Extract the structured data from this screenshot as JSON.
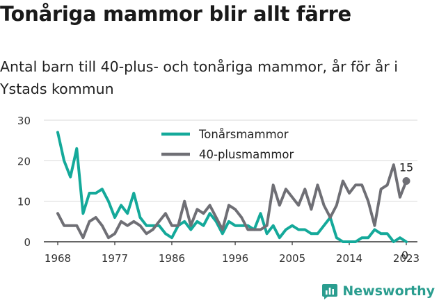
{
  "title": "Tonåriga mammor blir allt färre",
  "subtitle": "Antal barn till 40-plus- och tonåriga mammor, år för år i Ystads kommun",
  "brand": {
    "name": "Newsworthy"
  },
  "colors": {
    "teal": "#14a99a",
    "gray": "#6f6f75",
    "grid": "#d9d9d9",
    "axis": "#333333"
  },
  "chart_data": {
    "type": "line",
    "title": "Tonåriga mammor blir allt färre",
    "subtitle": "Antal barn till 40-plus- och tonåriga mammor, år för år i Ystads kommun",
    "xlabel": "",
    "ylabel": "",
    "x_ticks": [
      "1968",
      "1977",
      "1986",
      "1996",
      "2005",
      "2014",
      "2023"
    ],
    "y_ticks": [
      0,
      10,
      20,
      30
    ],
    "xlim": [
      1968,
      2023
    ],
    "ylim": [
      0,
      30
    ],
    "grid": true,
    "legend_position": "top",
    "end_labels": [
      "15",
      "0"
    ],
    "x": [
      1968,
      1969,
      1970,
      1971,
      1972,
      1973,
      1974,
      1975,
      1976,
      1977,
      1978,
      1979,
      1980,
      1981,
      1982,
      1983,
      1984,
      1985,
      1986,
      1987,
      1988,
      1989,
      1990,
      1991,
      1992,
      1993,
      1994,
      1995,
      1996,
      1997,
      1998,
      1999,
      2000,
      2001,
      2002,
      2003,
      2004,
      2005,
      2006,
      2007,
      2008,
      2009,
      2010,
      2011,
      2012,
      2013,
      2014,
      2015,
      2016,
      2017,
      2018,
      2019,
      2020,
      2021,
      2022,
      2023
    ],
    "series": [
      {
        "name": "Tonårsmammor",
        "color": "#14a99a",
        "values": [
          27,
          20,
          16,
          23,
          7,
          12,
          12,
          13,
          10,
          6,
          9,
          7,
          12,
          6,
          4,
          4,
          4,
          2,
          1,
          4,
          5,
          3,
          5,
          4,
          7,
          5,
          2,
          5,
          4,
          4,
          4,
          3,
          7,
          2,
          4,
          1,
          3,
          4,
          3,
          3,
          2,
          2,
          4,
          6,
          1,
          0,
          0,
          0,
          1,
          1,
          3,
          2,
          2,
          0,
          1,
          0
        ]
      },
      {
        "name": "40-plusmammor",
        "color": "#6f6f75",
        "values": [
          7,
          4,
          4,
          4,
          1,
          5,
          6,
          4,
          1,
          2,
          5,
          4,
          5,
          4,
          2,
          3,
          5,
          7,
          4,
          4,
          10,
          4,
          8,
          7,
          9,
          6,
          3,
          9,
          8,
          6,
          3,
          3,
          3,
          4,
          14,
          9,
          13,
          11,
          9,
          13,
          8,
          14,
          9,
          6,
          9,
          15,
          12,
          14,
          14,
          10,
          4,
          13,
          14,
          19,
          11,
          15
        ]
      }
    ]
  }
}
